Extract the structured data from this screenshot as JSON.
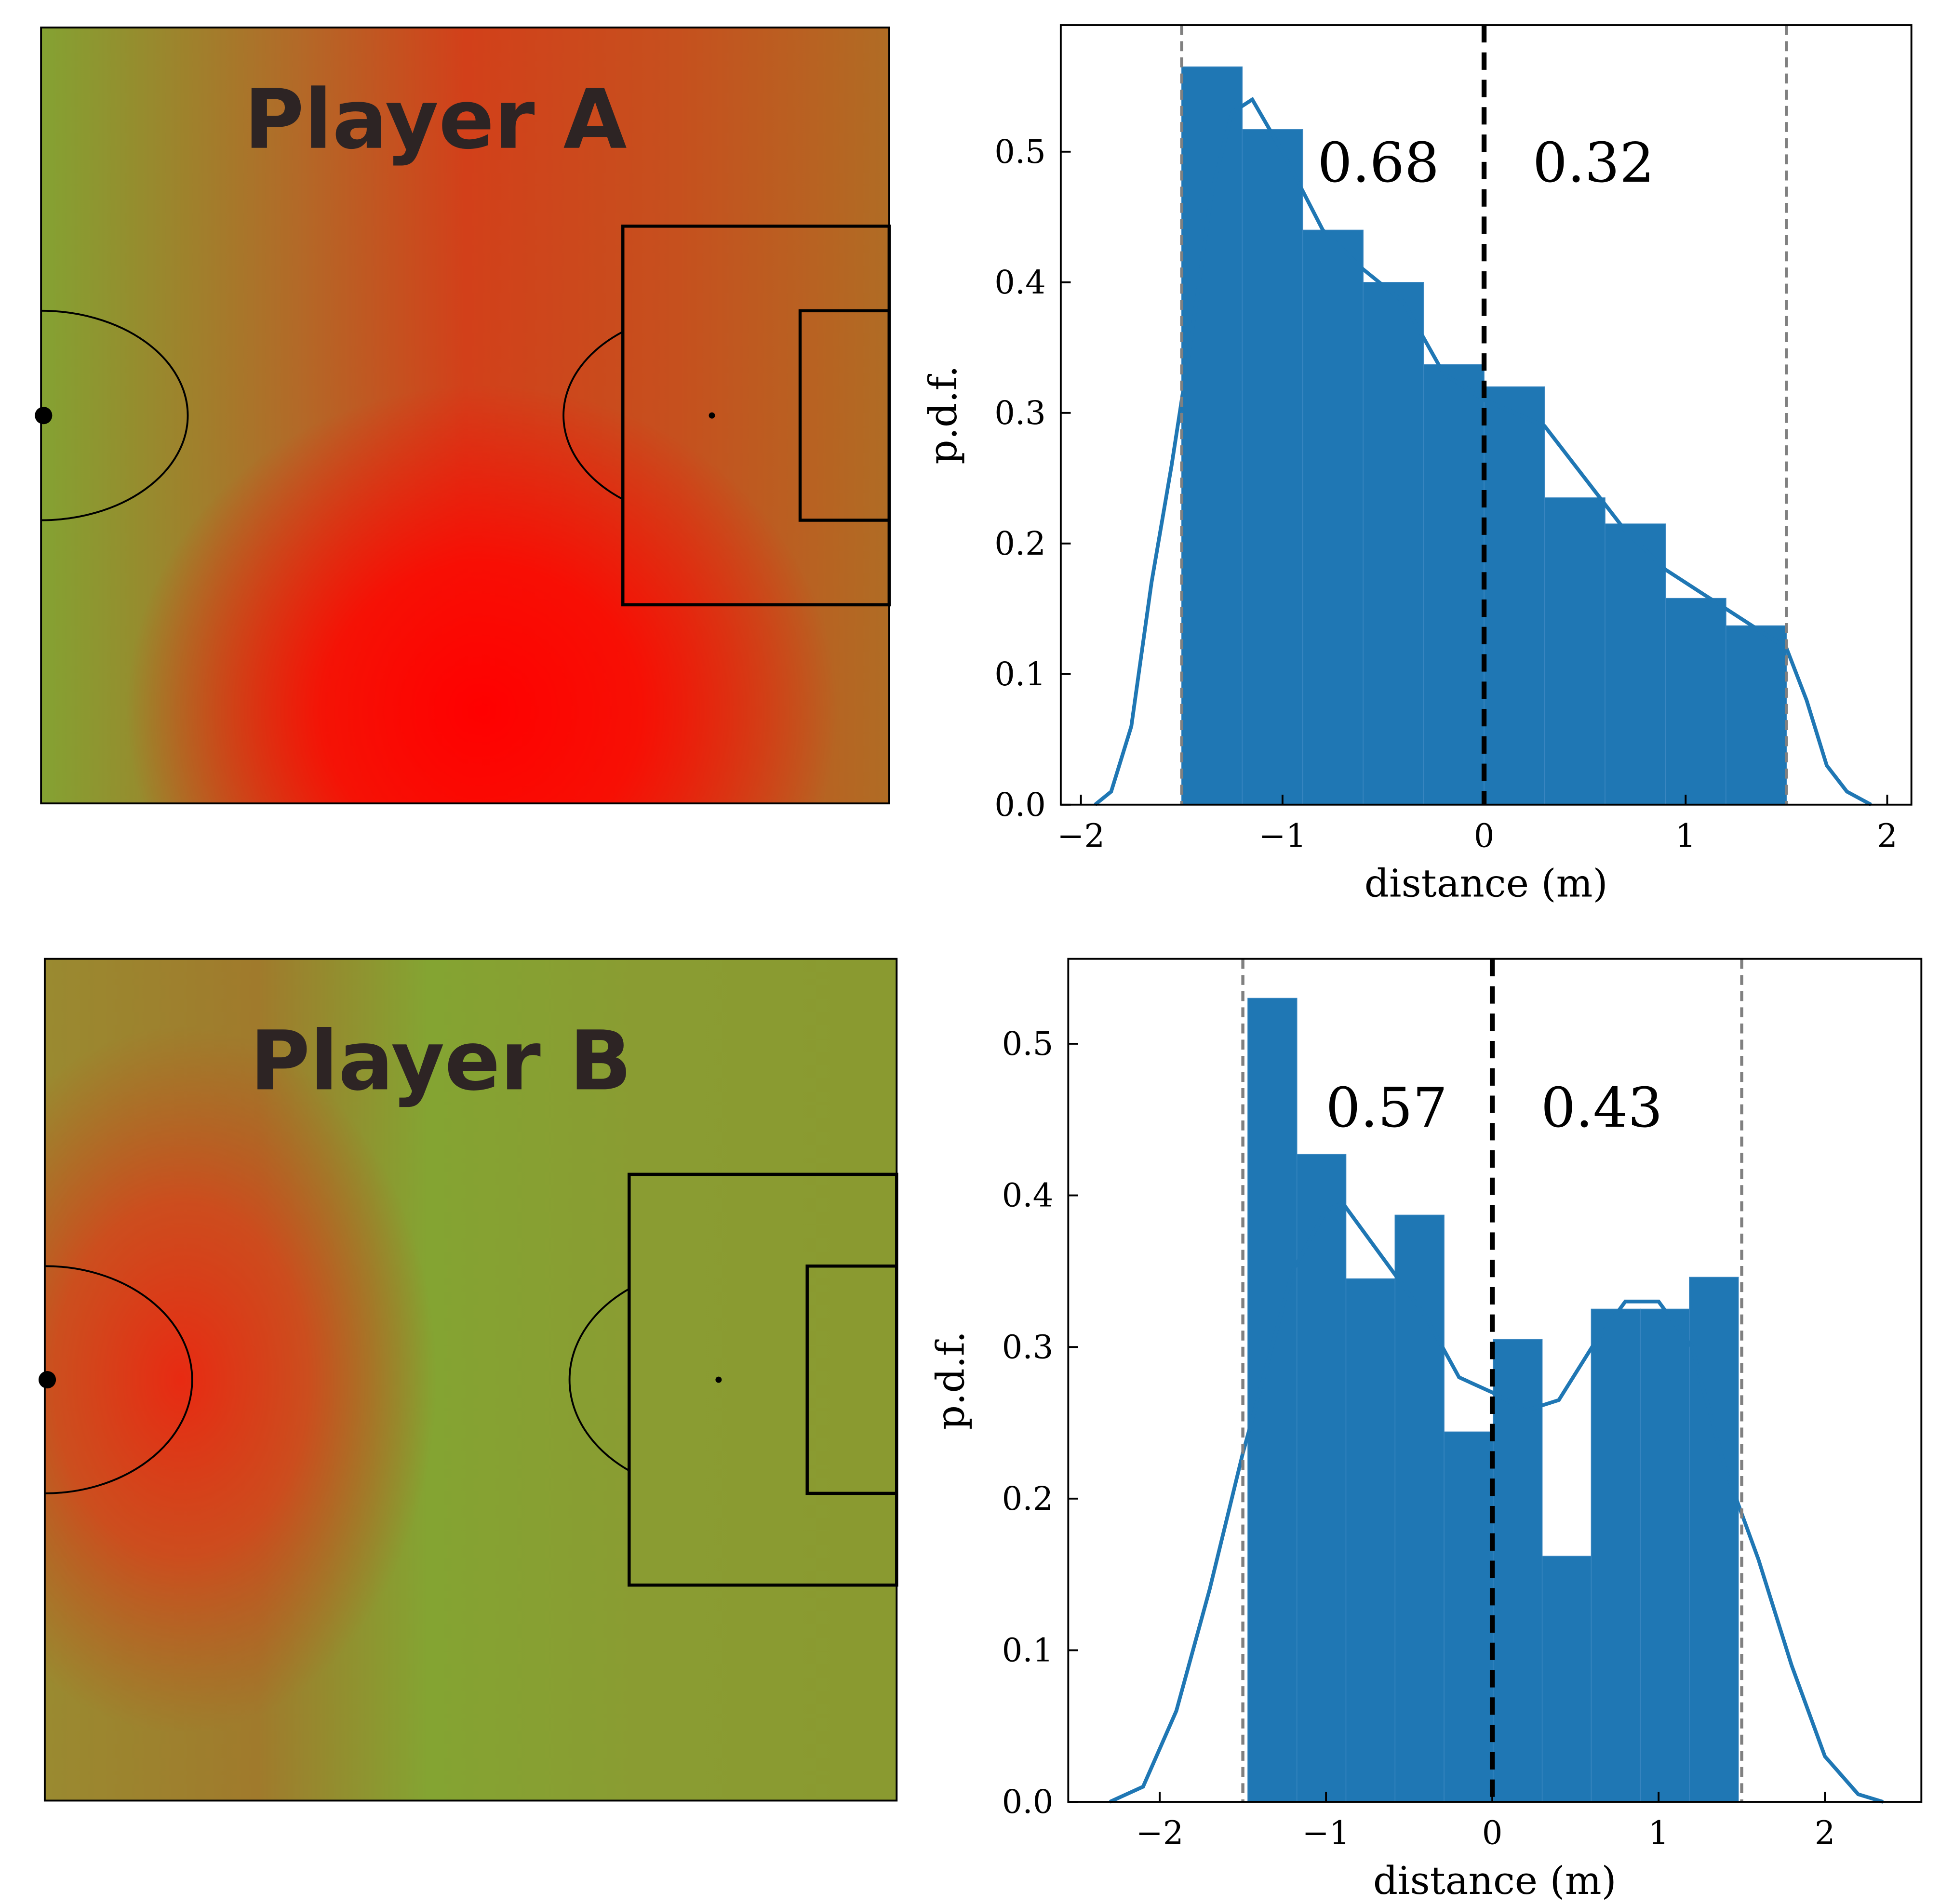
{
  "chart_data": [
    {
      "type": "pitch",
      "title": "Player A"
    },
    {
      "type": "histogram",
      "xlabel": "distance (m)",
      "ylabel": "p.d.f.",
      "bins": [
        -1.5,
        -1.2,
        -0.9,
        -0.6,
        -0.3,
        0,
        0.3,
        0.6,
        0.9,
        1.2,
        1.5
      ],
      "values": [
        0.565,
        0.517,
        0.44,
        0.4,
        0.337,
        0.32,
        0.235,
        0.215,
        0.158,
        0.137
      ],
      "color": "#1f77b4",
      "kde_x": [
        -1.93,
        -1.85,
        -1.75,
        -1.65,
        -1.55,
        -1.45,
        -1.35,
        -1.25,
        -1.15,
        -1.0,
        -0.8,
        -0.6,
        -0.4,
        -0.2,
        0,
        0.3,
        0.5,
        0.7,
        0.9,
        1.1,
        1.3,
        1.5,
        1.6,
        1.7,
        1.8,
        1.92
      ],
      "kde_y": [
        0,
        0.01,
        0.06,
        0.17,
        0.26,
        0.36,
        0.47,
        0.53,
        0.54,
        0.5,
        0.44,
        0.41,
        0.385,
        0.33,
        0.31,
        0.29,
        0.25,
        0.21,
        0.18,
        0.16,
        0.14,
        0.12,
        0.08,
        0.03,
        0.01,
        0
      ],
      "vlines": [
        -1.5,
        0,
        1.5
      ],
      "vline_colors": [
        "#808080",
        "#000000",
        "#808080"
      ],
      "annotations": [
        0.68,
        0.32
      ],
      "xlim": [
        -2.1,
        2.12
      ],
      "ylim": [
        0,
        0.597
      ],
      "xticks": [
        {
          "value": -2,
          "label": "−2"
        },
        {
          "value": -1,
          "label": "−1"
        },
        0,
        1,
        2
      ],
      "yticks": [
        {
          "value": 0,
          "label": "0.0"
        },
        0.1,
        0.2,
        0.3,
        0.4,
        0.5
      ]
    },
    {
      "type": "pitch",
      "title": "Player B"
    },
    {
      "type": "histogram",
      "xlabel": "distance (m)",
      "ylabel": "p.d.f.",
      "bins": [
        -1.47,
        -1.175,
        -0.88,
        -0.585,
        -0.29,
        0.005,
        0.3,
        0.595,
        0.89,
        1.185,
        1.48
      ],
      "values": [
        0.53,
        0.427,
        0.345,
        0.387,
        0.244,
        0.305,
        0.162,
        0.325,
        0.325,
        0.346
      ],
      "color": "#1f77b4",
      "kde_x": [
        -2.3,
        -2.1,
        -1.9,
        -1.7,
        -1.5,
        -1.4,
        -1.2,
        -1.0,
        -0.9,
        -0.6,
        -0.4,
        -0.2,
        0,
        0.2,
        0.4,
        0.6,
        0.8,
        1.0,
        1.2,
        1.4,
        1.6,
        1.8,
        2.0,
        2.2,
        2.35
      ],
      "kde_y": [
        0,
        0.01,
        0.06,
        0.14,
        0.23,
        0.27,
        0.35,
        0.39,
        0.395,
        0.35,
        0.32,
        0.28,
        0.27,
        0.258,
        0.265,
        0.3,
        0.33,
        0.33,
        0.3,
        0.22,
        0.16,
        0.09,
        0.03,
        0.005,
        0
      ],
      "vlines": [
        -1.5,
        0,
        1.5
      ],
      "vline_colors": [
        "#808080",
        "#000000",
        "#808080"
      ],
      "annotations": [
        0.57,
        0.43
      ],
      "xlim": [
        -2.55,
        2.58
      ],
      "ylim": [
        0,
        0.556
      ],
      "xticks": [
        {
          "value": -2,
          "label": "−2"
        },
        {
          "value": -1,
          "label": "−1"
        },
        0,
        1,
        2
      ],
      "yticks": [
        {
          "value": 0,
          "label": "0.0"
        },
        0.1,
        0.2,
        0.3,
        0.4,
        0.5
      ]
    }
  ]
}
